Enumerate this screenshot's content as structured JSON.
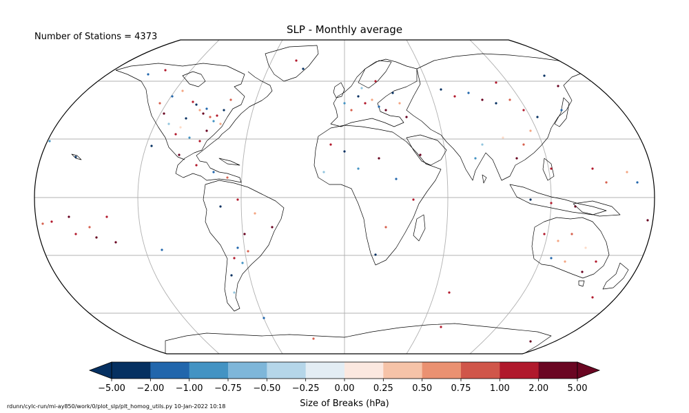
{
  "title": "SLP - Monthly average",
  "stations_label": "Number of Stations = 4373",
  "footer": "rdunn/cylc-run/mi-ay850/work/0/plot_slp/plt_homog_utils.py   10-Jan-2022 10:18",
  "colorbar": {
    "label": "Size of Breaks (hPa)",
    "ticks": [
      "−5.00",
      "−2.00",
      "−1.00",
      "−0.75",
      "−0.50",
      "−0.25",
      "0.00",
      "0.25",
      "0.50",
      "0.75",
      "1.00",
      "2.00",
      "5.00"
    ],
    "colors": [
      "#053061",
      "#2166ac",
      "#4393c3",
      "#92c5de",
      "#d1e5f0",
      "#f7f7f7",
      "#fddbc7",
      "#f4a582",
      "#d6604d",
      "#b2182b",
      "#67001f",
      "#67001f"
    ],
    "bins": [
      "#053061",
      "#2166ac",
      "#4393c3",
      "#7eb6d9",
      "#b5d6e9",
      "#e3edf4",
      "#fbe8e0",
      "#f6c3a8",
      "#ea9171",
      "#d0564a",
      "#b0192c",
      "#6a0622"
    ],
    "extend": "both"
  },
  "map": {
    "projection": "Robinson",
    "gridlines": true,
    "colors": {
      "ocean": "#ffffff",
      "coast": "#000000",
      "grid": "#b0b0b0"
    }
  }
}
